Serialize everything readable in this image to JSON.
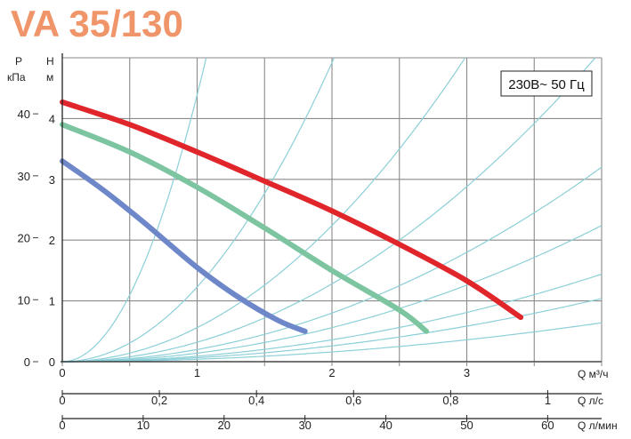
{
  "chart_data": {
    "type": "line",
    "title": "VA 35/130",
    "title_color": "#F0956A",
    "supply_label": "230В~ 50 Гц",
    "y_left_units": {
      "symbol": "P",
      "unit": "кПа"
    },
    "y_right_units": {
      "symbol": "H",
      "unit": "м"
    },
    "x_axes": [
      {
        "label": "Q",
        "unit": "м³/ч",
        "ticks": [
          "0",
          "1",
          "2",
          "3"
        ],
        "range": [
          0,
          4
        ]
      },
      {
        "label": "Q",
        "unit": "л/с",
        "ticks": [
          "0",
          "0,2",
          "0,4",
          "0,6",
          "0,8",
          "1"
        ],
        "range": [
          0,
          1.111
        ]
      },
      {
        "label": "Q",
        "unit": "л/мин",
        "ticks": [
          "0",
          "10",
          "20",
          "30",
          "40",
          "50",
          "60"
        ],
        "range": [
          0,
          66.67
        ]
      }
    ],
    "y_pressure_ticks": [
      "0",
      "10",
      "20",
      "30",
      "40"
    ],
    "y_head_ticks": [
      "0",
      "1",
      "2",
      "3",
      "4"
    ],
    "ylim_head": [
      0,
      5
    ],
    "grid": true,
    "series": [
      {
        "color": "#E0262B",
        "points": [
          [
            0,
            4.27
          ],
          [
            0.5,
            3.9
          ],
          [
            1,
            3.45
          ],
          [
            1.5,
            2.97
          ],
          [
            2,
            2.48
          ],
          [
            2.5,
            1.93
          ],
          [
            3,
            1.33
          ],
          [
            3.4,
            0.73
          ]
        ]
      },
      {
        "color": "#7DC4A0",
        "points": [
          [
            0,
            3.9
          ],
          [
            0.5,
            3.45
          ],
          [
            1,
            2.87
          ],
          [
            1.5,
            2.2
          ],
          [
            2,
            1.5
          ],
          [
            2.5,
            0.85
          ],
          [
            2.7,
            0.5
          ]
        ]
      },
      {
        "color": "#6D87C9",
        "points": [
          [
            0,
            3.3
          ],
          [
            0.3,
            2.83
          ],
          [
            0.6,
            2.3
          ],
          [
            1,
            1.55
          ],
          [
            1.3,
            1.07
          ],
          [
            1.6,
            0.68
          ],
          [
            1.8,
            0.5
          ]
        ]
      }
    ],
    "system_curves": {
      "color": "#8CCFD8",
      "coefficients": [
        4.39,
        1.23,
        0.56,
        0.32,
        0.2,
        0.14,
        0.09,
        0.065,
        0.04
      ]
    }
  }
}
